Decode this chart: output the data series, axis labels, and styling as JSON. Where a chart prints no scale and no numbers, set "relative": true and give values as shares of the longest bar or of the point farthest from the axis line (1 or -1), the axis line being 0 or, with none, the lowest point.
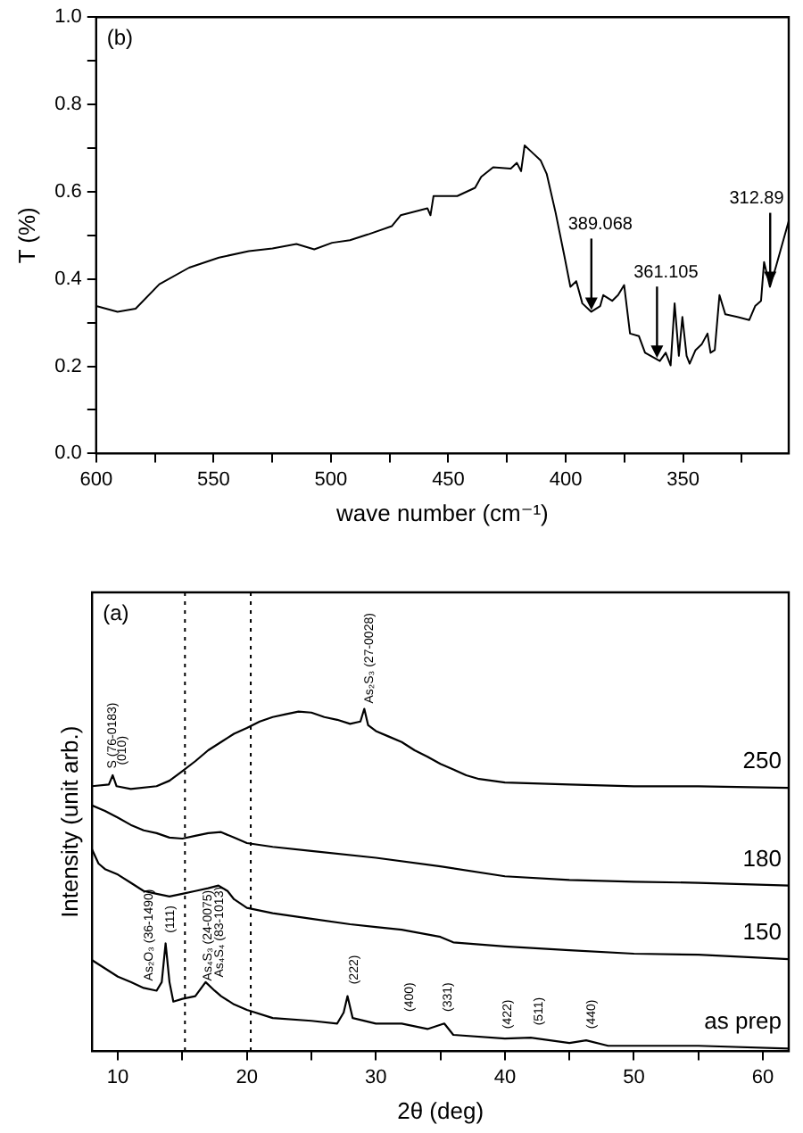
{
  "chart_data": [
    {
      "type": "line",
      "xlabel": "wave number (cm⁻¹)",
      "ylabel": "T (%)",
      "legend": false,
      "grid": false,
      "xlim": [
        600,
        305
      ],
      "xticks": [
        600,
        {
          "value": 575,
          "label": null
        },
        550,
        {
          "value": 525,
          "label": null
        },
        500,
        {
          "value": 475,
          "label": null
        },
        450,
        {
          "value": 425,
          "label": null
        },
        400,
        {
          "value": 375,
          "label": null
        },
        350,
        {
          "value": 325,
          "label": null
        }
      ],
      "ylim": [
        0,
        1
      ],
      "yticks": [
        {
          "value": 0,
          "label": "0.0"
        },
        {
          "value": 0.1,
          "label": null
        },
        {
          "value": 0.2,
          "label": "0.2"
        },
        {
          "value": 0.3,
          "label": null
        },
        {
          "value": 0.4,
          "label": "0.4"
        },
        {
          "value": 0.5,
          "label": null
        },
        {
          "value": 0.6,
          "label": "0.6"
        },
        {
          "value": 0.7,
          "label": null
        },
        {
          "value": 0.8,
          "label": "0.8"
        },
        {
          "value": 0.9,
          "label": null
        },
        {
          "value": 1,
          "label": "1.0"
        }
      ],
      "annotations": [
        "(b)",
        {
          "text": "389.068",
          "x": 389.068,
          "y": 0.325
        },
        {
          "text": "361.105",
          "x": 361.105,
          "y": 0.215
        },
        {
          "text": "312.89",
          "x": 312.89,
          "y": 0.384
        }
      ],
      "series": [
        {
          "color": "#000000",
          "x": [
            600,
            590.9,
            583.2,
            573.1,
            560.4,
            547.7,
            535,
            524.9,
            514.7,
            507.1,
            499.5,
            491.9,
            484.3,
            474.1,
            470.3,
            458.9,
            457.6,
            456.3,
            446.2,
            438.6,
            436,
            430.9,
            423.4,
            420.8,
            419,
            417.5,
            414.5,
            410.7,
            408.1,
            404.3,
            400.5,
            398,
            395.5,
            392.9,
            389.1,
            385.3,
            384,
            380.2,
            377.7,
            375.1,
            372.6,
            368.8,
            366.2,
            359.9,
            357.4,
            355.3,
            353.6,
            351.8,
            350.3,
            348.5,
            347.2,
            344.7,
            342.1,
            339.6,
            338.3,
            336.5,
            334.5,
            332,
            326.9,
            321.8,
            319.3,
            316.8,
            315.5,
            313,
            310.4,
            307.9,
            305
          ],
          "values": [
            0.338,
            0.325,
            0.332,
            0.388,
            0.426,
            0.449,
            0.464,
            0.47,
            0.48,
            0.468,
            0.483,
            0.489,
            0.502,
            0.521,
            0.546,
            0.562,
            0.546,
            0.59,
            0.59,
            0.609,
            0.634,
            0.656,
            0.653,
            0.666,
            0.647,
            0.706,
            0.691,
            0.672,
            0.641,
            0.552,
            0.451,
            0.382,
            0.395,
            0.344,
            0.325,
            0.338,
            0.363,
            0.35,
            0.363,
            0.386,
            0.275,
            0.269,
            0.231,
            0.212,
            0.231,
            0.202,
            0.344,
            0.224,
            0.313,
            0.224,
            0.206,
            0.237,
            0.25,
            0.275,
            0.231,
            0.237,
            0.363,
            0.319,
            0.313,
            0.306,
            0.338,
            0.35,
            0.439,
            0.382,
            0.429,
            0.477,
            0.533
          ]
        }
      ]
    },
    {
      "type": "line",
      "relative": true,
      "xlabel": "2θ (deg)",
      "ylabel": "Intensity (unit arb.)",
      "legend": false,
      "xlim": [
        8,
        62
      ],
      "xticks": [
        10,
        {
          "value": 15,
          "label": null
        },
        20,
        {
          "value": 25,
          "label": null
        },
        30,
        {
          "value": 35,
          "label": null
        },
        40,
        {
          "value": 45,
          "label": null
        },
        50,
        {
          "value": 55,
          "label": null
        },
        60
      ],
      "ref_lines": [
        {
          "axis": "x",
          "value": 15.2,
          "line_style": "dotted"
        },
        {
          "axis": "x",
          "value": 20.3,
          "line_style": "dotted"
        }
      ],
      "annotations": [
        "(a)",
        {
          "text": "S (76-0183)",
          "x": 9.2,
          "y": 0.81
        },
        {
          "text": "(010)",
          "x": 9.9,
          "y": 0.82
        },
        {
          "text": "As₂S₃ (27-0028)",
          "x": 29.1,
          "y": 1
        },
        {
          "text": "As₂O₃ (36-1490)",
          "x": 12,
          "y": 0.19
        },
        {
          "text": "(111)",
          "x": 13.7,
          "y": 0.33
        },
        {
          "text": "As₄S₃ (24-0075)",
          "x": 16.6,
          "y": 0.19
        },
        {
          "text": "As₄S₄ (83-1013)",
          "x": 17.5,
          "y": 0.2
        },
        {
          "text": "(222)",
          "x": 27.9,
          "y": 0.18
        },
        {
          "text": "(400)",
          "x": 32.2,
          "y": 0.1
        },
        {
          "text": "(331)",
          "x": 35.2,
          "y": 0.1
        },
        {
          "text": "(422)",
          "x": 39.8,
          "y": 0.05
        },
        {
          "text": "(511)",
          "x": 42.2,
          "y": 0.06
        },
        {
          "text": "(440)",
          "x": 46.3,
          "y": 0.05
        }
      ],
      "series": [
        {
          "name": "250",
          "color": "#000000",
          "x": [
            8,
            9.3,
            9.6,
            9.9,
            11,
            13,
            14,
            15,
            16,
            17,
            18,
            19,
            20,
            21,
            22,
            23,
            24,
            25,
            26,
            27,
            28,
            28.8,
            29.1,
            29.4,
            30,
            31,
            32,
            33,
            34,
            35,
            36,
            37,
            38,
            40,
            45,
            50,
            55,
            62
          ],
          "values": [
            0.774,
            0.779,
            0.806,
            0.774,
            0.766,
            0.774,
            0.79,
            0.818,
            0.847,
            0.879,
            0.903,
            0.927,
            0.944,
            0.963,
            0.976,
            0.984,
            0.992,
            0.989,
            0.976,
            0.968,
            0.956,
            0.963,
            1,
            0.952,
            0.935,
            0.919,
            0.903,
            0.879,
            0.86,
            0.839,
            0.823,
            0.806,
            0.795,
            0.785,
            0.779,
            0.774,
            0.774,
            0.769
          ]
        },
        {
          "name": "180",
          "color": "#000000",
          "x": [
            8,
            9,
            10,
            11,
            12,
            13,
            14,
            15,
            16,
            17,
            18,
            19,
            20,
            22,
            25,
            30,
            35,
            40,
            45,
            50,
            55,
            62
          ],
          "values": [
            0.718,
            0.702,
            0.682,
            0.661,
            0.645,
            0.637,
            0.624,
            0.621,
            0.629,
            0.637,
            0.64,
            0.624,
            0.608,
            0.597,
            0.585,
            0.565,
            0.54,
            0.511,
            0.5,
            0.495,
            0.492,
            0.484
          ]
        },
        {
          "name": "150",
          "color": "#000000",
          "x": [
            8,
            8.5,
            9,
            10,
            11,
            12,
            13,
            14,
            15,
            16,
            17,
            17.8,
            18.5,
            19,
            20,
            22,
            25,
            28,
            30,
            32,
            35,
            36,
            40,
            45,
            50,
            55,
            62
          ],
          "values": [
            0.589,
            0.548,
            0.532,
            0.516,
            0.492,
            0.468,
            0.46,
            0.452,
            0.46,
            0.468,
            0.476,
            0.484,
            0.468,
            0.444,
            0.419,
            0.403,
            0.387,
            0.371,
            0.363,
            0.355,
            0.334,
            0.318,
            0.306,
            0.295,
            0.285,
            0.282,
            0.269
          ]
        },
        {
          "name": "as prep",
          "color": "#000000",
          "x": [
            8,
            9,
            10,
            11,
            12,
            13,
            13.4,
            13.7,
            14,
            14.3,
            15,
            16,
            16.8,
            17.5,
            18,
            19,
            20,
            22,
            25,
            27,
            27.5,
            27.8,
            28.2,
            30,
            32,
            34,
            35.3,
            36,
            40,
            42,
            45,
            46.3,
            48,
            55,
            62
          ],
          "values": [
            0.266,
            0.242,
            0.218,
            0.202,
            0.185,
            0.177,
            0.202,
            0.315,
            0.202,
            0.145,
            0.153,
            0.161,
            0.202,
            0.177,
            0.161,
            0.137,
            0.121,
            0.097,
            0.089,
            0.081,
            0.113,
            0.161,
            0.097,
            0.081,
            0.081,
            0.065,
            0.081,
            0.048,
            0.037,
            0.04,
            0.024,
            0.032,
            0.016,
            0.016,
            0.008
          ]
        }
      ]
    }
  ]
}
